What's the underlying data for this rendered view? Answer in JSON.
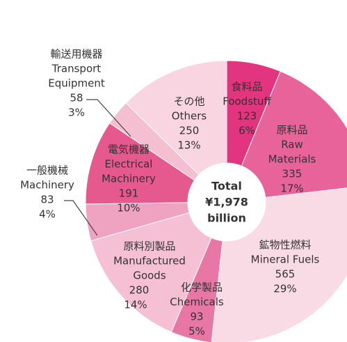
{
  "chart_data": {
    "type": "donut",
    "center_label": [
      "Total",
      "¥1,978",
      "billion"
    ],
    "categories_ja": [
      "食料品",
      "原料品",
      "鉱物性燃料",
      "化学製品",
      "原料別製品",
      "一般機械",
      "電気機器",
      "輸送用機器",
      "その他"
    ],
    "categories_en": [
      [
        "Foodstuff"
      ],
      [
        "Raw",
        "Materials"
      ],
      [
        "Mineral Fuels"
      ],
      [
        "Chemicals"
      ],
      [
        "Manufactured",
        "Goods"
      ],
      [
        "Machinery"
      ],
      [
        "Electrical",
        "Machinery"
      ],
      [
        "Transport",
        "Equipment"
      ],
      [
        "Others"
      ]
    ],
    "values": [
      123,
      335,
      565,
      93,
      280,
      83,
      191,
      58,
      250
    ],
    "percent_labels": [
      "6%",
      "17%",
      "29%",
      "5%",
      "14%",
      "4%",
      "10%",
      "3%",
      "13%"
    ],
    "colors": [
      "#e2347f",
      "#e8639a",
      "#f9dbe6",
      "#e877a5",
      "#f5c0d4",
      "#f0a3c1",
      "#e5598f",
      "#f5bfd2",
      "#f9d5e2"
    ]
  }
}
